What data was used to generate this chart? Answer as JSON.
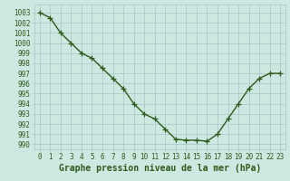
{
  "x": [
    0,
    1,
    2,
    3,
    4,
    5,
    6,
    7,
    8,
    9,
    10,
    11,
    12,
    13,
    14,
    15,
    16,
    17,
    18,
    19,
    20,
    21,
    22,
    23
  ],
  "y": [
    1003,
    1002.5,
    1001,
    1000,
    999,
    998.5,
    997.5,
    996.5,
    995.5,
    994,
    993,
    992.5,
    991.5,
    990.5,
    990.4,
    990.4,
    990.3,
    991,
    992.5,
    994,
    995.5,
    996.5,
    997,
    997
  ],
  "line_color": "#2d5a1b",
  "marker": "+",
  "marker_size": 4,
  "line_width": 1.0,
  "bg_color": "#cce8e0",
  "grid_color": "#aacccc",
  "xlabel": "Graphe pression niveau de la mer (hPa)",
  "xlabel_fontsize": 7,
  "xlabel_color": "#2d5a1b",
  "ytick_labels": [
    990,
    991,
    992,
    993,
    994,
    995,
    996,
    997,
    998,
    999,
    1000,
    1001,
    1002,
    1003
  ],
  "ylim": [
    989.5,
    1003.8
  ],
  "xlim": [
    -0.5,
    23.5
  ],
  "tick_color": "#2d5a1b",
  "tick_fontsize": 5.5,
  "xtick_labels": [
    "0",
    "1",
    "2",
    "3",
    "4",
    "5",
    "6",
    "7",
    "8",
    "9",
    "10",
    "11",
    "12",
    "13",
    "14",
    "15",
    "16",
    "17",
    "18",
    "19",
    "20",
    "21",
    "22",
    "23"
  ]
}
